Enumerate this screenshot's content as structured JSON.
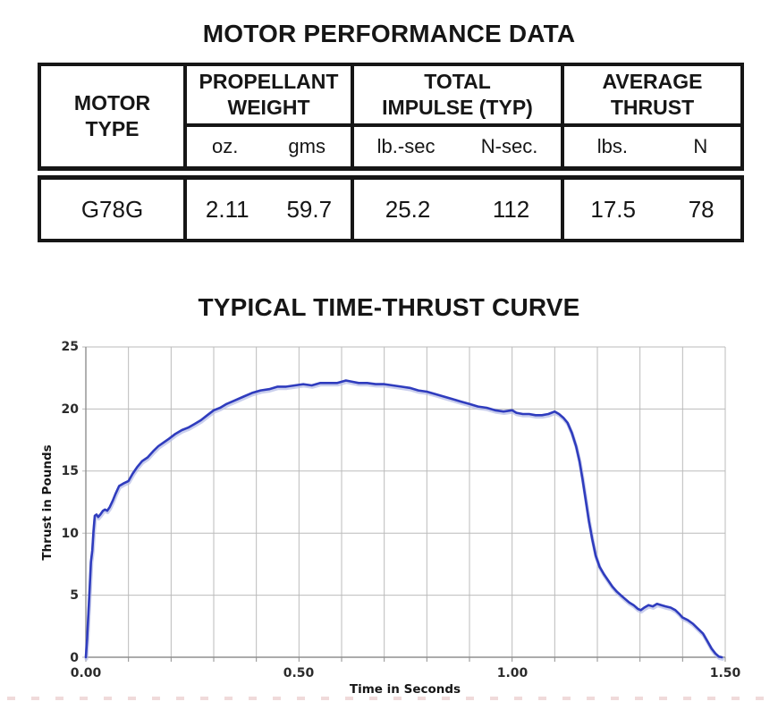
{
  "performance_table": {
    "title": "MOTOR PERFORMANCE DATA",
    "motor_type_label": "MOTOR\nTYPE",
    "groups": [
      {
        "label": "PROPELLANT\nWEIGHT",
        "units": [
          "oz.",
          "gms"
        ],
        "values": [
          "2.11",
          "59.7"
        ]
      },
      {
        "label": "TOTAL\nIMPULSE (TYP)",
        "units": [
          "lb.-sec",
          "N-sec."
        ],
        "values": [
          "25.2",
          "112"
        ]
      },
      {
        "label": "AVERAGE\nTHRUST",
        "units": [
          "lbs.",
          "N"
        ],
        "values": [
          "17.5",
          "78"
        ]
      }
    ],
    "row": {
      "motor": "G78G"
    }
  },
  "decor": {
    "page_break_dash_color": "#f0dada"
  },
  "chart_data": {
    "type": "line",
    "title": "TYPICAL TIME-THRUST CURVE",
    "xlabel": "Time in Seconds",
    "ylabel": "Thrust in Pounds",
    "xlim": [
      0,
      1.5
    ],
    "ylim": [
      0,
      25
    ],
    "x_grid_step": 0.1,
    "xtick_values": [
      0,
      0.5,
      1.0,
      1.5
    ],
    "xtick_labels": [
      "0.00",
      "0.50",
      "1.00",
      "1.50"
    ],
    "yticks": [
      0,
      5,
      10,
      15,
      20,
      25
    ],
    "grid": true,
    "legend": "none",
    "line_color": "#2f3cbe",
    "line_shadow_color": "#b4bbe6",
    "grid_color": "#bbbbbb",
    "axis_color": "#8f8f8f",
    "series": [
      {
        "name": "thrust",
        "points": [
          [
            0.0,
            0.0
          ],
          [
            0.003,
            1.5
          ],
          [
            0.006,
            3.6
          ],
          [
            0.009,
            5.6
          ],
          [
            0.012,
            7.7
          ],
          [
            0.015,
            8.6
          ],
          [
            0.018,
            10.2
          ],
          [
            0.021,
            11.4
          ],
          [
            0.025,
            11.5
          ],
          [
            0.029,
            11.3
          ],
          [
            0.034,
            11.5
          ],
          [
            0.04,
            11.8
          ],
          [
            0.045,
            11.9
          ],
          [
            0.05,
            11.8
          ],
          [
            0.056,
            12.1
          ],
          [
            0.063,
            12.6
          ],
          [
            0.07,
            13.2
          ],
          [
            0.078,
            13.8
          ],
          [
            0.088,
            14.0
          ],
          [
            0.1,
            14.2
          ],
          [
            0.11,
            14.8
          ],
          [
            0.12,
            15.3
          ],
          [
            0.132,
            15.8
          ],
          [
            0.145,
            16.1
          ],
          [
            0.158,
            16.6
          ],
          [
            0.17,
            17.0
          ],
          [
            0.182,
            17.3
          ],
          [
            0.195,
            17.6
          ],
          [
            0.21,
            18.0
          ],
          [
            0.225,
            18.3
          ],
          [
            0.24,
            18.5
          ],
          [
            0.255,
            18.8
          ],
          [
            0.27,
            19.1
          ],
          [
            0.285,
            19.5
          ],
          [
            0.3,
            19.9
          ],
          [
            0.315,
            20.1
          ],
          [
            0.33,
            20.4
          ],
          [
            0.35,
            20.7
          ],
          [
            0.37,
            21.0
          ],
          [
            0.39,
            21.3
          ],
          [
            0.41,
            21.5
          ],
          [
            0.43,
            21.6
          ],
          [
            0.45,
            21.8
          ],
          [
            0.47,
            21.8
          ],
          [
            0.49,
            21.9
          ],
          [
            0.51,
            22.0
          ],
          [
            0.53,
            21.9
          ],
          [
            0.55,
            22.1
          ],
          [
            0.57,
            22.1
          ],
          [
            0.59,
            22.1
          ],
          [
            0.61,
            22.3
          ],
          [
            0.625,
            22.2
          ],
          [
            0.64,
            22.1
          ],
          [
            0.66,
            22.1
          ],
          [
            0.68,
            22.0
          ],
          [
            0.7,
            22.0
          ],
          [
            0.72,
            21.9
          ],
          [
            0.74,
            21.8
          ],
          [
            0.76,
            21.7
          ],
          [
            0.78,
            21.5
          ],
          [
            0.8,
            21.4
          ],
          [
            0.82,
            21.2
          ],
          [
            0.84,
            21.0
          ],
          [
            0.86,
            20.8
          ],
          [
            0.88,
            20.6
          ],
          [
            0.9,
            20.4
          ],
          [
            0.92,
            20.2
          ],
          [
            0.94,
            20.1
          ],
          [
            0.96,
            19.9
          ],
          [
            0.98,
            19.8
          ],
          [
            1.0,
            19.9
          ],
          [
            1.01,
            19.7
          ],
          [
            1.025,
            19.6
          ],
          [
            1.04,
            19.6
          ],
          [
            1.055,
            19.5
          ],
          [
            1.07,
            19.5
          ],
          [
            1.085,
            19.6
          ],
          [
            1.1,
            19.8
          ],
          [
            1.11,
            19.6
          ],
          [
            1.12,
            19.3
          ],
          [
            1.13,
            18.9
          ],
          [
            1.14,
            18.1
          ],
          [
            1.15,
            17.0
          ],
          [
            1.158,
            15.8
          ],
          [
            1.165,
            14.4
          ],
          [
            1.172,
            12.8
          ],
          [
            1.18,
            11.0
          ],
          [
            1.188,
            9.5
          ],
          [
            1.196,
            8.2
          ],
          [
            1.205,
            7.3
          ],
          [
            1.215,
            6.7
          ],
          [
            1.225,
            6.2
          ],
          [
            1.235,
            5.7
          ],
          [
            1.245,
            5.3
          ],
          [
            1.255,
            5.0
          ],
          [
            1.265,
            4.7
          ],
          [
            1.275,
            4.4
          ],
          [
            1.285,
            4.2
          ],
          [
            1.295,
            3.9
          ],
          [
            1.302,
            3.8
          ],
          [
            1.31,
            4.0
          ],
          [
            1.32,
            4.2
          ],
          [
            1.33,
            4.1
          ],
          [
            1.34,
            4.3
          ],
          [
            1.35,
            4.2
          ],
          [
            1.36,
            4.1
          ],
          [
            1.372,
            4.0
          ],
          [
            1.383,
            3.8
          ],
          [
            1.392,
            3.5
          ],
          [
            1.4,
            3.2
          ],
          [
            1.412,
            3.0
          ],
          [
            1.424,
            2.7
          ],
          [
            1.436,
            2.3
          ],
          [
            1.448,
            1.9
          ],
          [
            1.458,
            1.3
          ],
          [
            1.468,
            0.7
          ],
          [
            1.477,
            0.3
          ],
          [
            1.485,
            0.05
          ],
          [
            1.492,
            0.0
          ]
        ]
      }
    ]
  }
}
